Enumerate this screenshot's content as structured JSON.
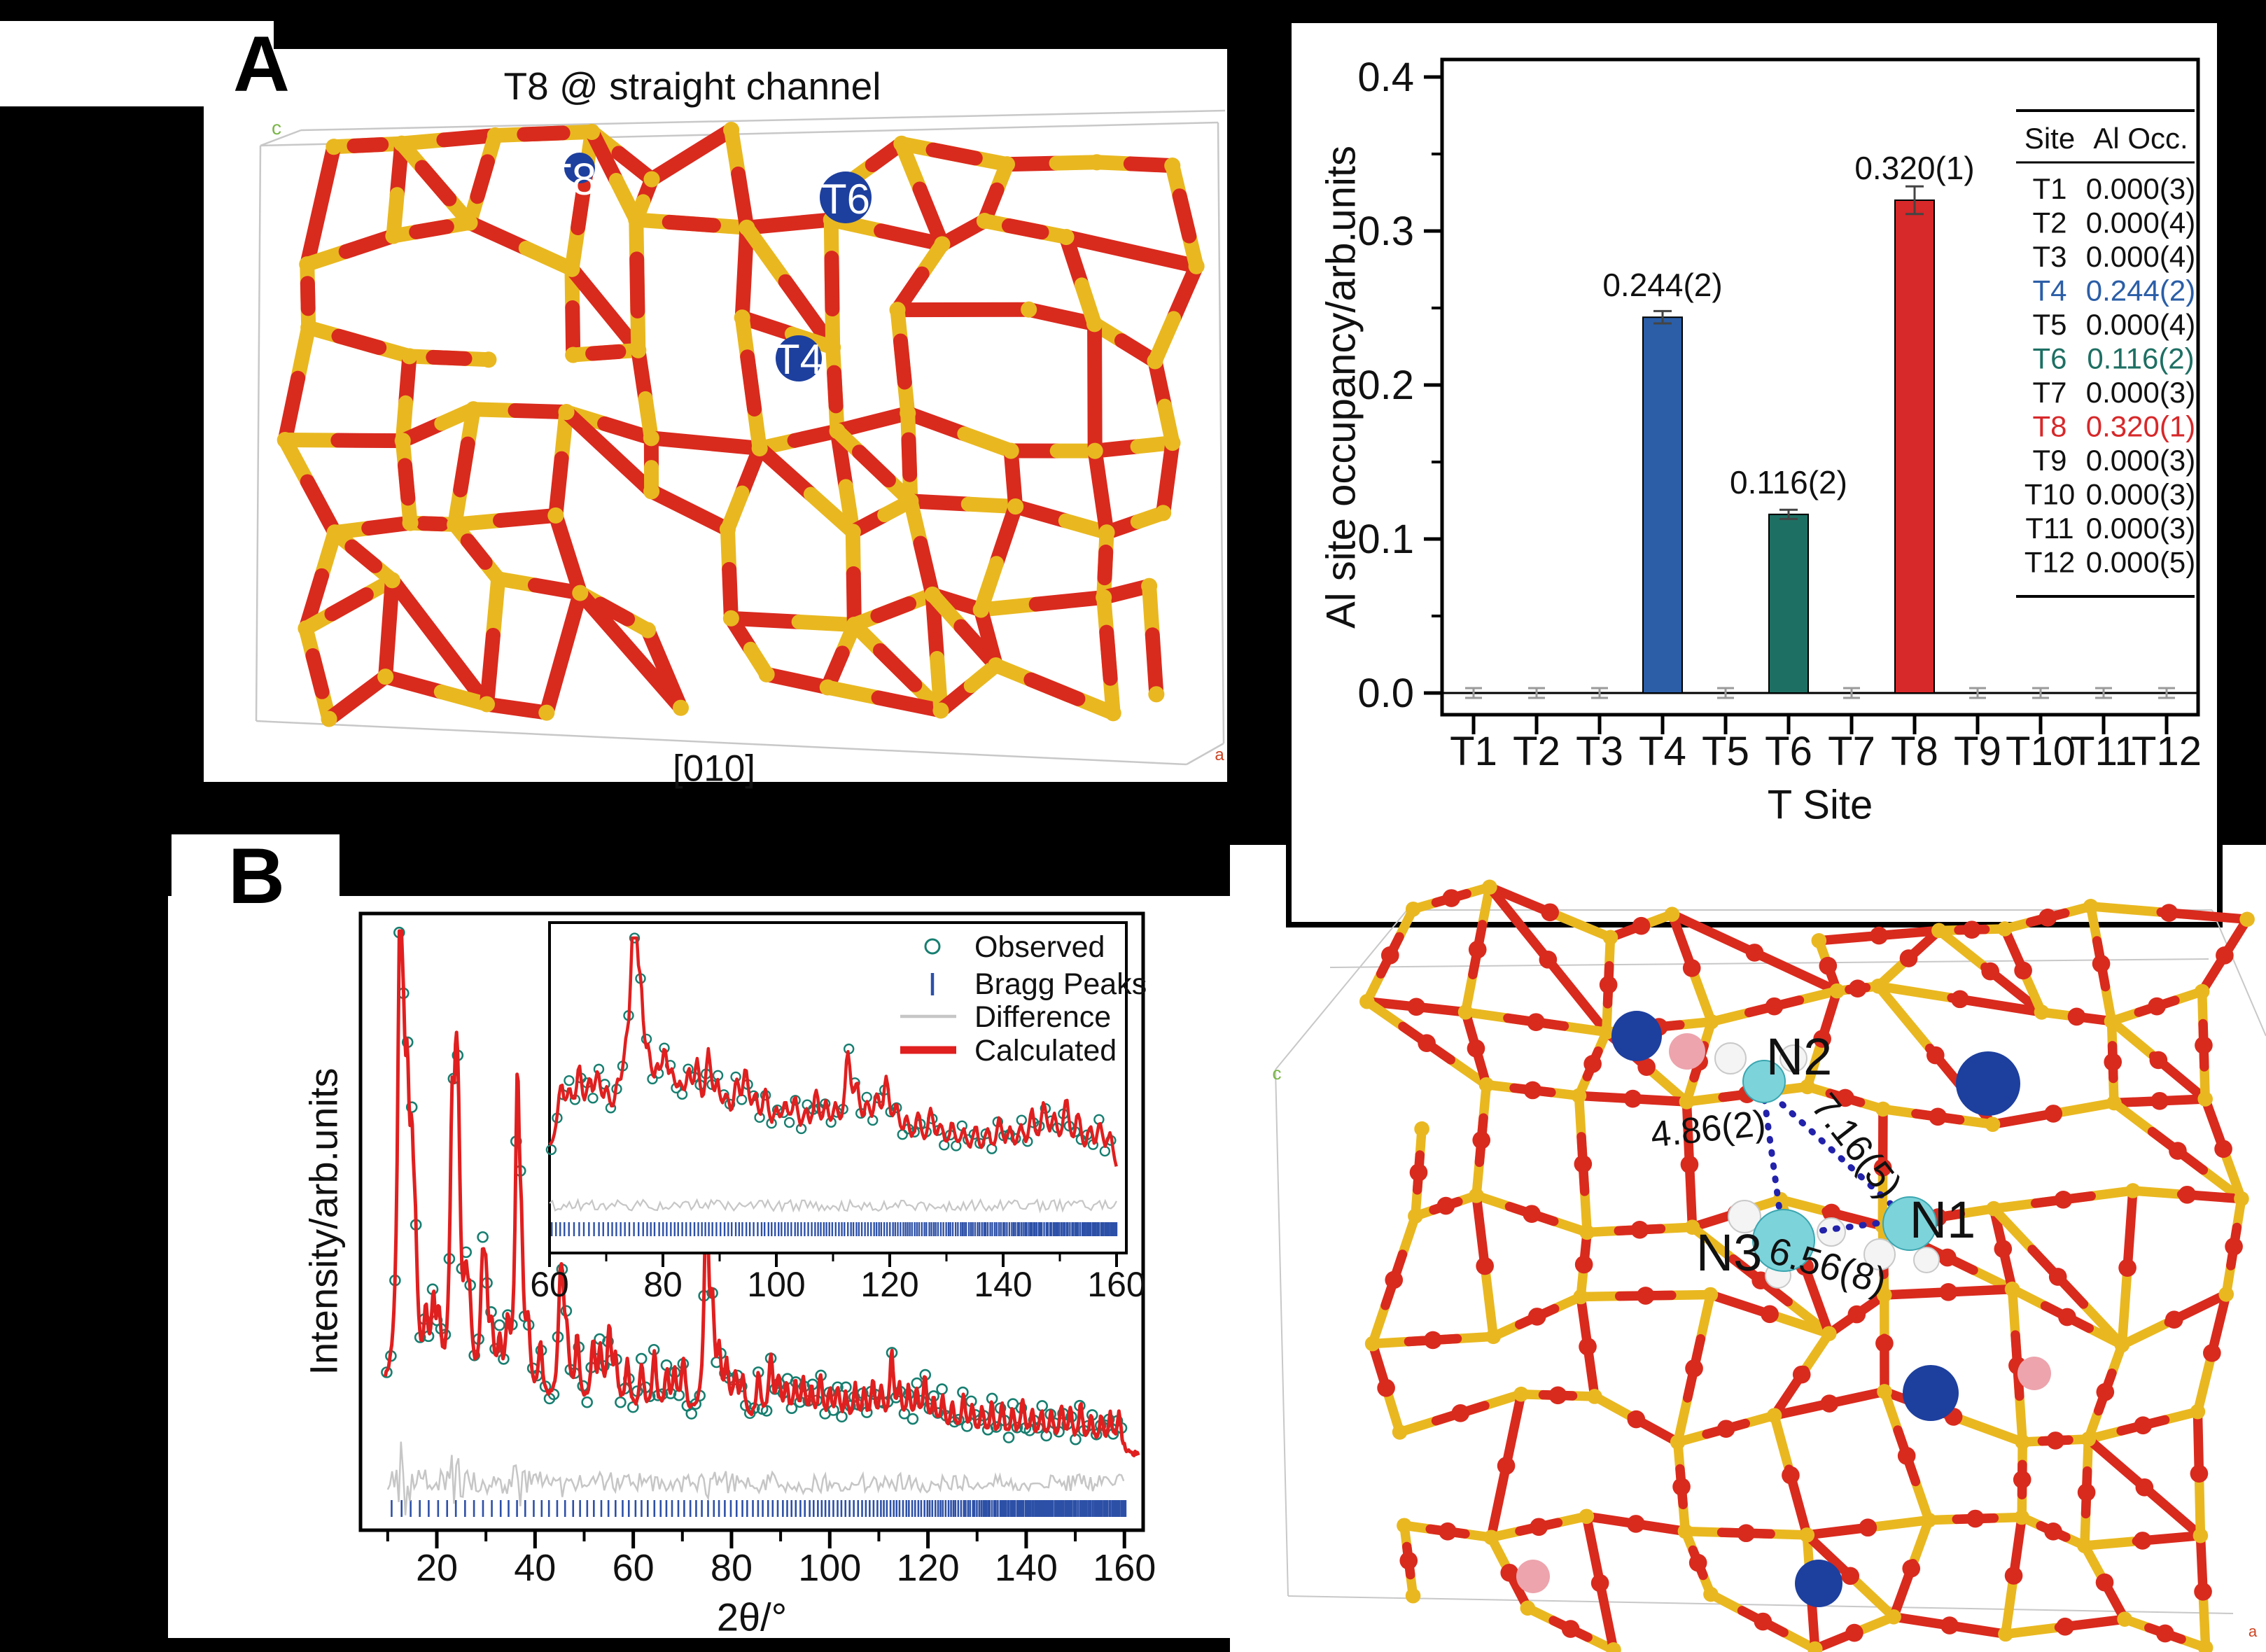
{
  "figure": {
    "a_label": "A",
    "b_label": "B"
  },
  "panel_a": {
    "title": "T8 @ straight channel",
    "view_label": "[010]",
    "site_labels": [
      "T8",
      "T6",
      "T4"
    ],
    "cell_axis_c": "c",
    "cell_axis_a": "a"
  },
  "panel_b": {
    "xrd_ylabel": "Intensity/arb.units",
    "xrd_xlabel": "2θ/°",
    "legend": [
      "Observed",
      "Bragg Peaks",
      "Difference",
      "Calculated"
    ],
    "structure": {
      "site_labels": [
        "N2",
        "N3",
        "N1"
      ],
      "distance_n2_n3": "4.86(2)",
      "distance_n2_n1": "7.16(5)",
      "distance_n3_n1": "6.56(8)",
      "cell_axis_c": "c",
      "cell_axis_a": "a"
    }
  },
  "colors": {
    "bar_blue": "#2b5ea7",
    "bar_teal": "#1e6f63",
    "bar_red": "#d7282a",
    "observed": "#177e70",
    "calculated": "#e01f1f",
    "difference": "#c6c6c6",
    "bragg": "#2d50a7",
    "stick_red": "#d92a1e",
    "stick_yellow": "#e9b820",
    "n_cyan": "#7dd3da",
    "sphere_blue": "#1d3f9e",
    "sphere_pink": "#eda4ad",
    "dotted_line": "#2222aa",
    "error_gray": "#9a9a9a",
    "cell_line": "#c8c8c8",
    "axis_c_green": "#7ab648",
    "axis_a_red": "#cc4422"
  },
  "chart_data": [
    {
      "type": "bar",
      "title": "",
      "xlabel": "T Site",
      "ylabel": "Al site occupancy/arb.units",
      "categories": [
        "T1",
        "T2",
        "T3",
        "T4",
        "T5",
        "T6",
        "T7",
        "T8",
        "T9",
        "T10",
        "T11",
        "T12"
      ],
      "values": [
        0,
        0,
        0,
        0.244,
        0,
        0.116,
        0,
        0.32,
        0,
        0,
        0,
        0
      ],
      "errors_visual": [
        0.003,
        0.003,
        0.003,
        0.004,
        0.003,
        0.003,
        0.003,
        0.009,
        0.003,
        0.003,
        0.003,
        0.003
      ],
      "bar_labels": [
        "",
        "",
        "",
        "0.244(2)",
        "",
        "0.116(2)",
        "",
        "0.320(1)",
        "",
        "",
        "",
        ""
      ],
      "bar_colors": [
        "",
        "",
        "",
        "#2b5ea7",
        "",
        "#1e6f63",
        "",
        "#d7282a",
        "",
        "",
        "",
        ""
      ],
      "ylim": [
        0,
        0.42
      ],
      "yticks": [
        "0.0",
        "0.1",
        "0.2",
        "0.3",
        "0.4"
      ],
      "grid": false,
      "legend_position": "none",
      "table": {
        "headers": [
          "Site",
          "Al Occ."
        ],
        "rows": [
          [
            "T1",
            "0.000(3)"
          ],
          [
            "T2",
            "0.000(4)"
          ],
          [
            "T3",
            "0.000(4)"
          ],
          [
            "T4",
            "0.244(2)"
          ],
          [
            "T5",
            "0.000(4)"
          ],
          [
            "T6",
            "0.116(2)"
          ],
          [
            "T7",
            "0.000(3)"
          ],
          [
            "T8",
            "0.320(1)"
          ],
          [
            "T9",
            "0.000(3)"
          ],
          [
            "T10",
            "0.000(3)"
          ],
          [
            "T11",
            "0.000(3)"
          ],
          [
            "T12",
            "0.000(5)"
          ]
        ],
        "row_colors": [
          "#111111",
          "#111111",
          "#111111",
          "#2b5ea7",
          "#111111",
          "#1e6f63",
          "#111111",
          "#d7282a",
          "#111111",
          "#111111",
          "#111111",
          "#111111"
        ]
      }
    },
    {
      "type": "line",
      "name": "xrd_main",
      "xlabel": "2θ/°",
      "ylabel": "Intensity/arb.units",
      "xlim": [
        9,
        163
      ],
      "xticks": [
        20,
        40,
        60,
        80,
        100,
        120,
        140,
        160
      ],
      "series": [
        "Observed",
        "Bragg Peaks",
        "Difference",
        "Calculated"
      ],
      "peaks": [
        [
          12.5,
          650
        ],
        [
          13.2,
          260
        ],
        [
          14.0,
          300
        ],
        [
          14.9,
          230
        ],
        [
          15.6,
          150
        ],
        [
          17.8,
          90
        ],
        [
          19.3,
          110
        ],
        [
          20.4,
          90
        ],
        [
          23.1,
          330
        ],
        [
          23.9,
          290
        ],
        [
          24.4,
          250
        ],
        [
          25.9,
          120
        ],
        [
          26.7,
          100
        ],
        [
          29.3,
          160
        ],
        [
          30.0,
          130
        ],
        [
          31.2,
          80
        ],
        [
          32.8,
          70
        ],
        [
          34.4,
          90
        ],
        [
          36.4,
          430
        ],
        [
          37.2,
          160
        ],
        [
          38.6,
          90
        ],
        [
          41.1,
          80
        ],
        [
          45.1,
          130
        ],
        [
          45.6,
          110
        ],
        [
          46.5,
          80
        ],
        [
          48.6,
          100
        ],
        [
          51.8,
          90
        ],
        [
          53.3,
          80
        ],
        [
          55.1,
          110
        ],
        [
          56.4,
          70
        ],
        [
          58.8,
          70
        ],
        [
          61.7,
          70
        ],
        [
          64.3,
          90
        ],
        [
          66.8,
          60
        ],
        [
          68.4,
          60
        ],
        [
          70.2,
          80
        ],
        [
          74.9,
          330
        ],
        [
          76.1,
          130
        ],
        [
          77.5,
          80
        ],
        [
          79.0,
          70
        ],
        [
          80.8,
          60
        ],
        [
          82.3,
          60
        ],
        [
          85.5,
          70
        ],
        [
          88.0,
          95
        ],
        [
          89.6,
          60
        ],
        [
          91.2,
          50
        ],
        [
          93.0,
          55
        ],
        [
          94.6,
          60
        ],
        [
          96.3,
          50
        ],
        [
          98.1,
          70
        ],
        [
          100.0,
          50
        ],
        [
          101.6,
          55
        ],
        [
          103.3,
          45
        ],
        [
          105.2,
          60
        ],
        [
          107.0,
          50
        ],
        [
          108.8,
          70
        ],
        [
          110.5,
          55
        ],
        [
          112.6,
          110
        ],
        [
          114.2,
          60
        ],
        [
          116.0,
          60
        ],
        [
          117.7,
          55
        ],
        [
          119.4,
          80
        ],
        [
          121.2,
          50
        ],
        [
          123.0,
          55
        ],
        [
          125.0,
          45
        ],
        [
          127.2,
          60
        ],
        [
          129.0,
          45
        ],
        [
          131.0,
          45
        ],
        [
          133.0,
          50
        ],
        [
          135.1,
          50
        ],
        [
          137.2,
          45
        ],
        [
          139.3,
          60
        ],
        [
          141.2,
          45
        ],
        [
          143.1,
          45
        ],
        [
          145.1,
          50
        ],
        [
          147.2,
          55
        ],
        [
          149.0,
          50
        ],
        [
          151.1,
          60
        ],
        [
          153.2,
          45
        ],
        [
          155.3,
          45
        ],
        [
          157.1,
          50
        ],
        [
          158.9,
          55
        ]
      ]
    },
    {
      "type": "line",
      "name": "xrd_inset",
      "xlim": [
        60,
        160
      ],
      "xticks": [
        60,
        80,
        100,
        120,
        140,
        160
      ],
      "peaks": [
        [
          62,
          85
        ],
        [
          63.5,
          65
        ],
        [
          65.2,
          100
        ],
        [
          67,
          75
        ],
        [
          68.5,
          85
        ],
        [
          70.1,
          65
        ],
        [
          72,
          60
        ],
        [
          73.4,
          80
        ],
        [
          74.9,
          330
        ],
        [
          76.1,
          140
        ],
        [
          77.5,
          85
        ],
        [
          79,
          70
        ],
        [
          80.3,
          105
        ],
        [
          81.6,
          75
        ],
        [
          83,
          65
        ],
        [
          84.5,
          85
        ],
        [
          86,
          105
        ],
        [
          88,
          125
        ],
        [
          89.6,
          75
        ],
        [
          91.2,
          65
        ],
        [
          93,
          85
        ],
        [
          94.6,
          105
        ],
        [
          96.3,
          65
        ],
        [
          98.1,
          85
        ],
        [
          100,
          55
        ],
        [
          101.6,
          65
        ],
        [
          103.3,
          75
        ],
        [
          105.2,
          55
        ],
        [
          107,
          85
        ],
        [
          108.8,
          65
        ],
        [
          110.5,
          60
        ],
        [
          112.6,
          140
        ],
        [
          114.2,
          85
        ],
        [
          116,
          65
        ],
        [
          117.7,
          75
        ],
        [
          119.4,
          105
        ],
        [
          121.2,
          65
        ],
        [
          123,
          55
        ],
        [
          125,
          65
        ],
        [
          127.2,
          75
        ],
        [
          129,
          50
        ],
        [
          131,
          55
        ],
        [
          133,
          50
        ],
        [
          135.1,
          55
        ],
        [
          137.2,
          50
        ],
        [
          139.3,
          65
        ],
        [
          141.2,
          50
        ],
        [
          143.1,
          55
        ],
        [
          145.1,
          75
        ],
        [
          147.2,
          85
        ],
        [
          149,
          65
        ],
        [
          151.1,
          95
        ],
        [
          153.2,
          75
        ],
        [
          155.3,
          55
        ],
        [
          157.1,
          65
        ],
        [
          158.9,
          55
        ]
      ]
    }
  ]
}
